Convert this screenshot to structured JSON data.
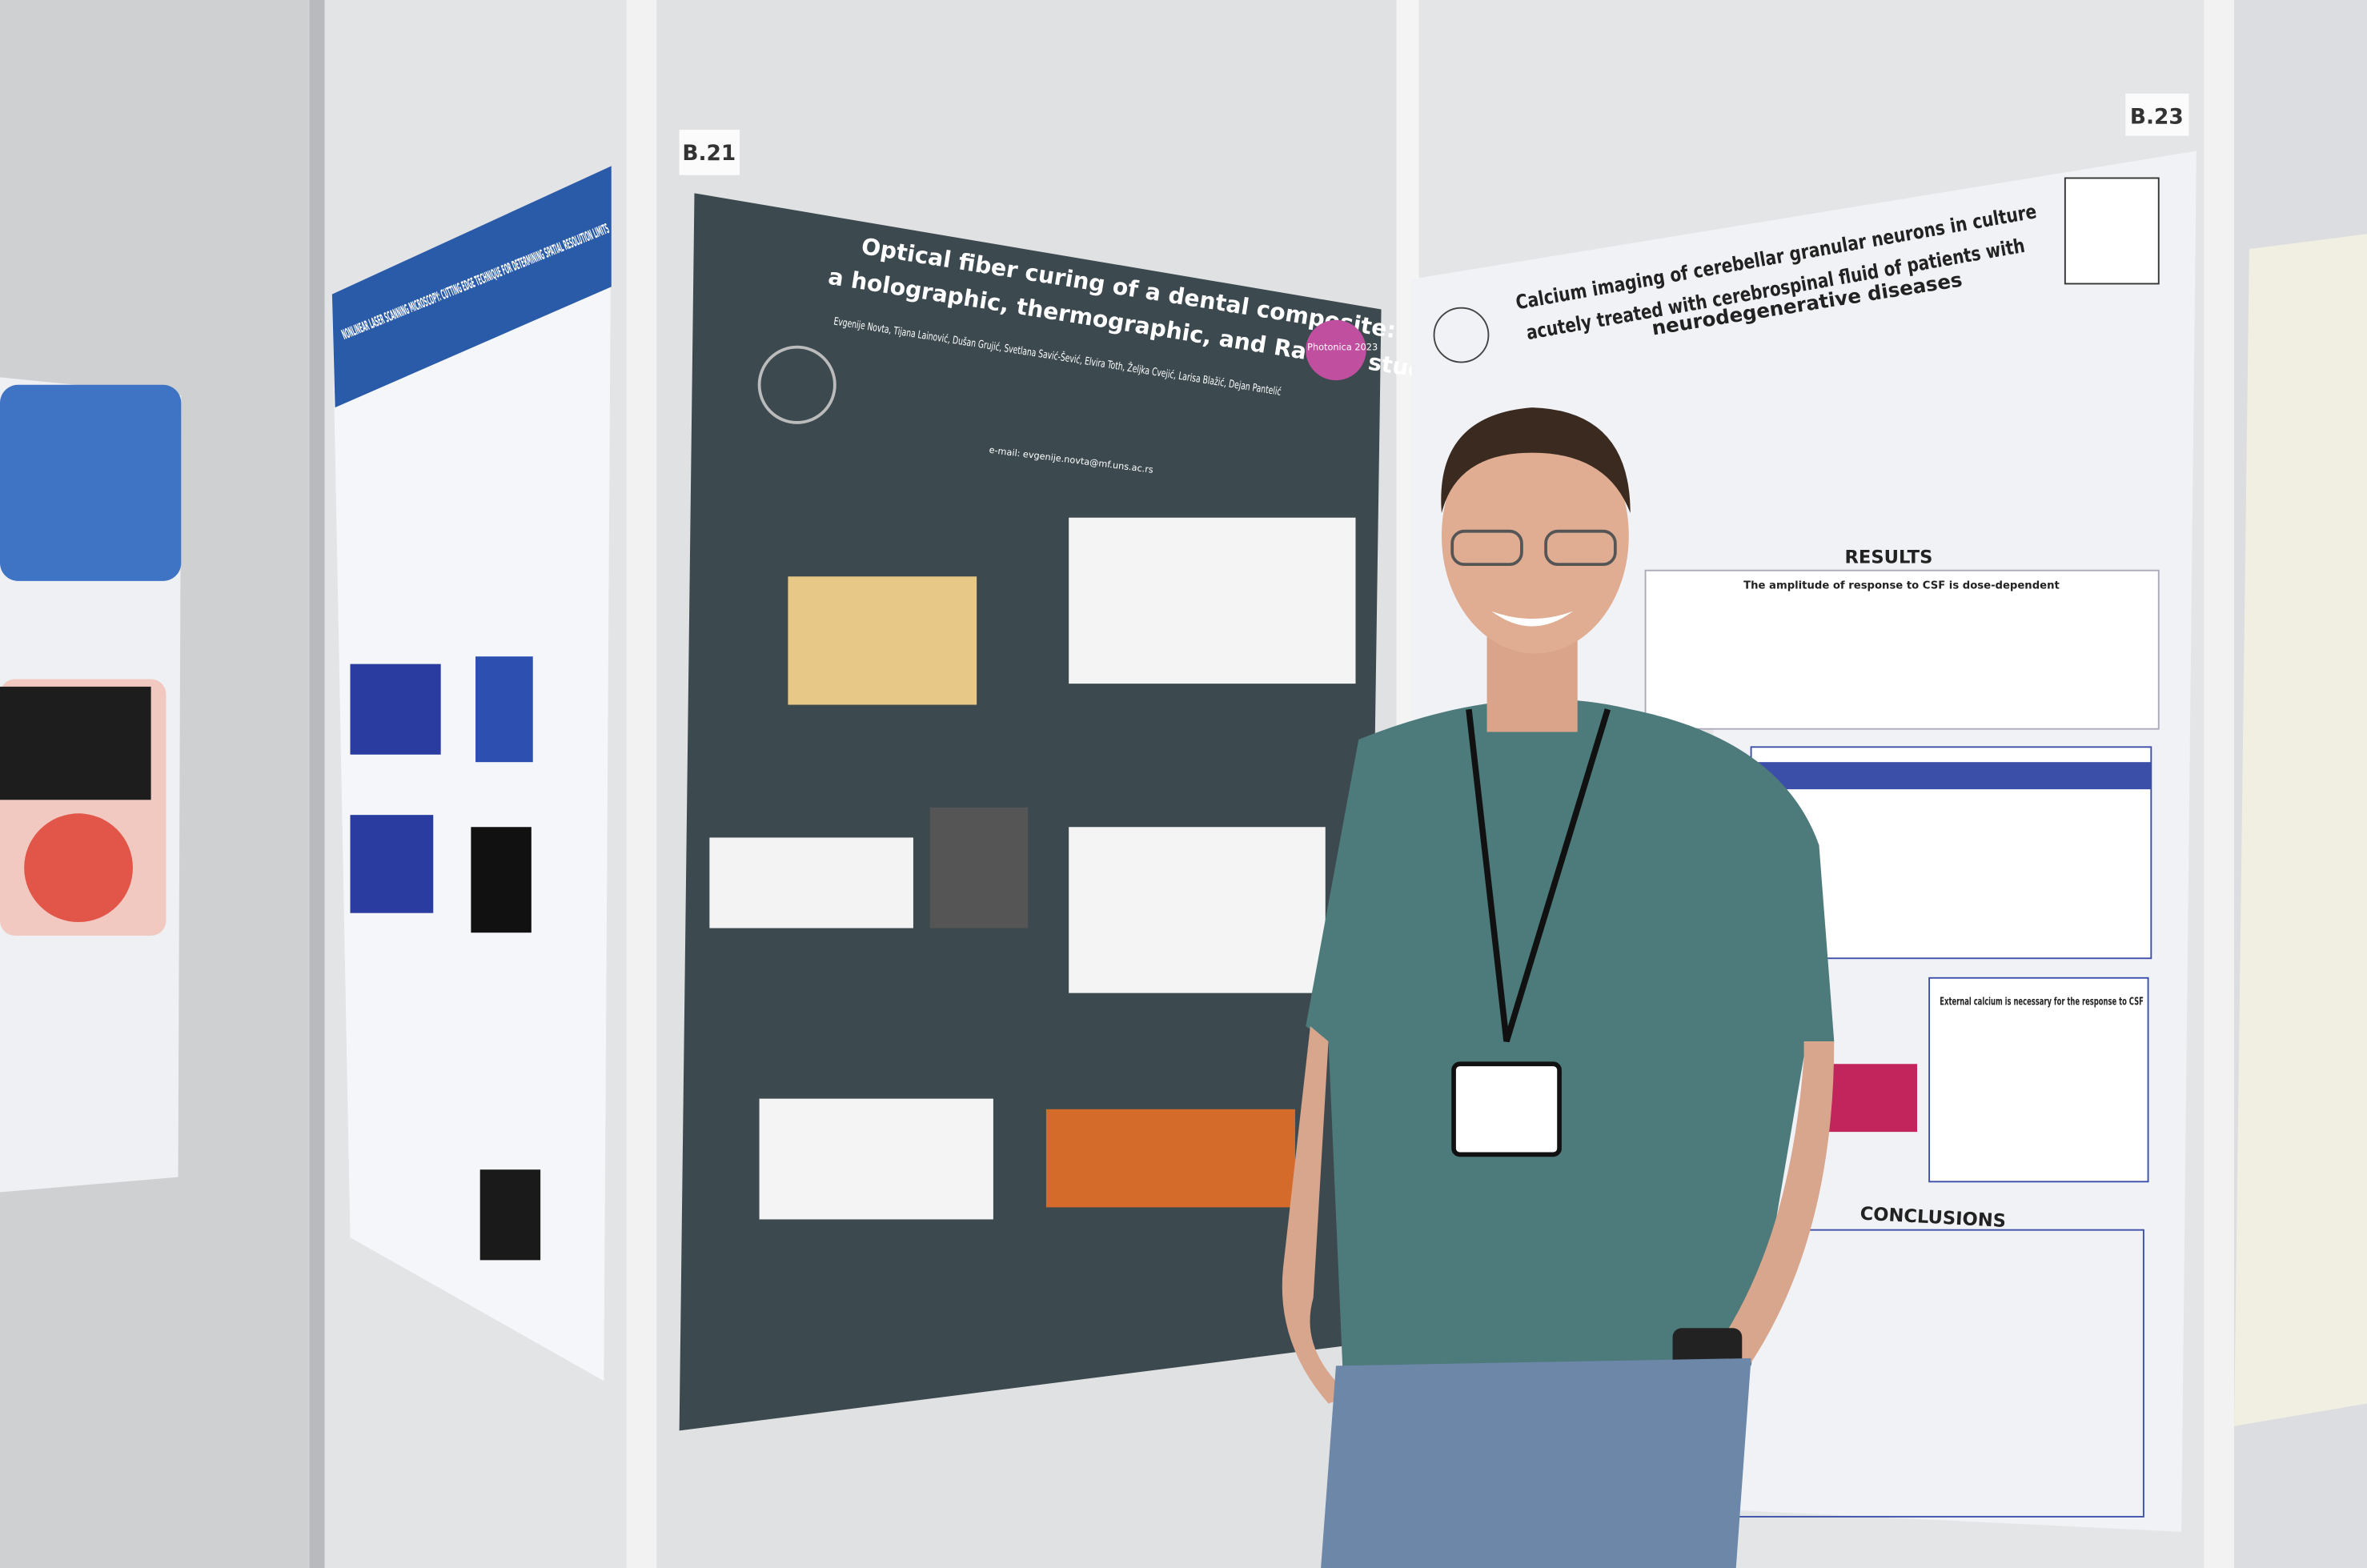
{
  "board_labels": {
    "center": "B.21",
    "right": "B.23"
  },
  "left_poster": {
    "title": "NONLINEAR LASER SCANNING MICROSCOPY: CUTTING EDGE TECHNIQUE FOR DETERMINING SPATIAL RESOLUTION LIMITS"
  },
  "center_poster": {
    "title_line1": "Optical fiber curing of a dental composite:",
    "title_line2": "a holographic, thermographic, and Raman study",
    "authors": "Evgenije Novta, Tijana Lainović, Dušan Grujić, Svetlana Savić-Šević, Elvira Toth, Željka Cvejić, Larisa Blažić, Dejan Pantelić",
    "email": "e-mail: evgenije.novta@mf.uns.ac.rs",
    "logo": "Photonica 2023"
  },
  "right_poster": {
    "title_line1": "Calcium imaging of cerebellar granular neurons in culture",
    "title_line2": "acutely treated with cerebrospinal fluid of patients with",
    "title_line3": "neurodegenerative diseases",
    "results": "RESULTS",
    "results_sub": "The amplitude of response to CSF is dose-dependent",
    "calcium_box": "External calcium is necessary for the response to CSF",
    "conclusions": "CONCLUSIONS"
  }
}
